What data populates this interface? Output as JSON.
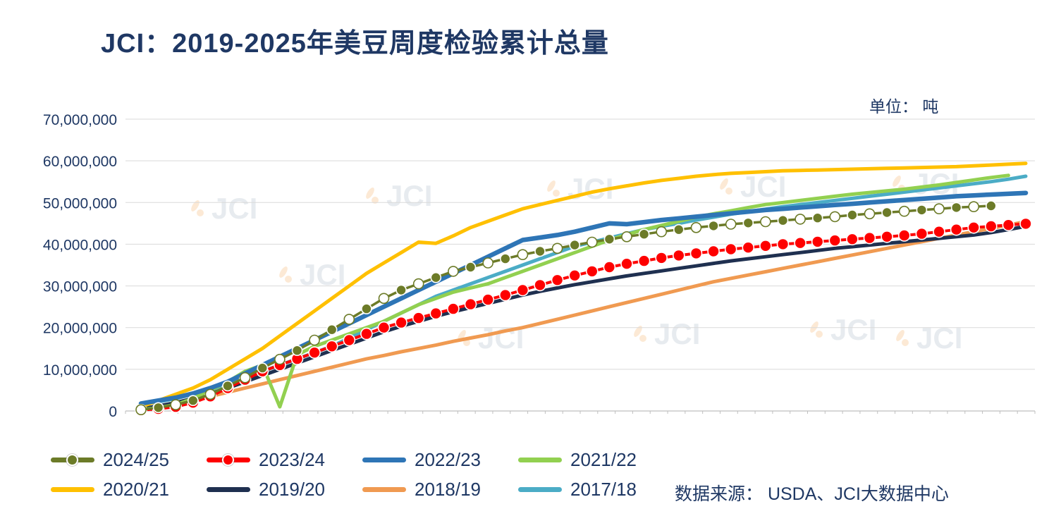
{
  "header": {
    "title": "JCI：2019-2025年美豆周度检验累计总量"
  },
  "chart_data": {
    "type": "line",
    "title": "JCI：2019-2025年美豆周度检验累计总量",
    "unit_label": "单位： 吨",
    "values_unit": "million tons (cumulative weekly US soybean inspections)",
    "x_axis": {
      "label": "",
      "weeks_max": 52,
      "tick_labels_visible": false
    },
    "y_axis": {
      "min": 0,
      "max": 70,
      "tick_values": [
        0,
        10,
        20,
        30,
        40,
        50,
        60,
        70
      ],
      "tick_labels": [
        "0",
        "10,000,000",
        "20,000,000",
        "30,000,000",
        "40,000,000",
        "50,000,000",
        "60,000,000",
        "70,000,000"
      ]
    },
    "grid": "horizontal",
    "legend_position": "bottom",
    "watermark_text": "JCI",
    "series": [
      {
        "name": "2024/25",
        "color": "#6C7B28",
        "marker": "circle",
        "values": [
          0.3,
          0.8,
          1.5,
          2.5,
          4.0,
          6.0,
          8.0,
          10.3,
          12.4,
          14.5,
          17.0,
          19.5,
          22.0,
          24.5,
          27.0,
          29.0,
          30.5,
          32.0,
          33.5,
          34.5,
          35.5,
          36.5,
          37.5,
          38.3,
          39.0,
          39.8,
          40.5,
          41.2,
          41.8,
          42.4,
          43.0,
          43.5,
          44.0,
          44.4,
          44.8,
          45.1,
          45.4,
          45.7,
          46.0,
          46.3,
          46.6,
          47.0,
          47.3,
          47.6,
          47.9,
          48.2,
          48.5,
          48.8,
          49.0,
          49.2
        ]
      },
      {
        "name": "2023/24",
        "color": "#FE0000",
        "marker": "circle",
        "values": [
          0.2,
          0.5,
          1.0,
          2.0,
          3.5,
          5.5,
          7.5,
          9.5,
          11.0,
          12.5,
          14.0,
          15.5,
          17.0,
          18.5,
          20.0,
          21.2,
          22.3,
          23.4,
          24.5,
          25.6,
          26.7,
          27.8,
          29.0,
          30.2,
          31.4,
          32.5,
          33.5,
          34.5,
          35.3,
          36.0,
          36.7,
          37.3,
          37.8,
          38.3,
          38.8,
          39.2,
          39.6,
          40.0,
          40.3,
          40.6,
          40.9,
          41.2,
          41.5,
          41.8,
          42.1,
          42.5,
          43.0,
          43.5,
          44.0,
          44.3,
          44.6,
          44.9
        ]
      },
      {
        "name": "2022/23",
        "color": "#2E75B6",
        "marker": "none",
        "values": [
          1.8,
          2.5,
          3.2,
          4.2,
          5.5,
          7.0,
          9.0,
          11.0,
          13.0,
          15.0,
          17.0,
          19.0,
          21.0,
          23.0,
          25.0,
          27.0,
          29.0,
          31.0,
          33.0,
          35.0,
          37.0,
          39.0,
          41.0,
          41.6,
          42.2,
          43.0,
          44.0,
          45.0,
          44.8,
          45.3,
          45.8,
          46.2,
          46.6,
          47.0,
          47.4,
          47.8,
          48.2,
          48.5,
          48.8,
          49.1,
          49.4,
          49.7,
          50.0,
          50.3,
          50.6,
          50.9,
          51.2,
          51.5,
          51.7,
          51.9,
          52.1,
          52.3
        ]
      },
      {
        "name": "2021/22",
        "color": "#92D050",
        "marker": "none",
        "values": [
          0.3,
          0.8,
          1.5,
          3.0,
          5.0,
          7.0,
          9.5,
          11.0,
          1.0,
          13.5,
          15.5,
          17.0,
          18.5,
          20.0,
          21.5,
          23.5,
          25.5,
          27.0,
          28.5,
          29.5,
          30.5,
          32.0,
          33.5,
          35.0,
          36.5,
          38.0,
          39.5,
          41.0,
          42.3,
          43.5,
          44.5,
          45.5,
          46.5,
          47.3,
          48.0,
          48.8,
          49.5,
          50.0,
          50.5,
          51.0,
          51.5,
          52.0,
          52.4,
          52.8,
          53.2,
          53.7,
          54.2,
          54.8,
          55.4,
          56.0,
          56.5
        ]
      },
      {
        "name": "2020/21",
        "color": "#FFC000",
        "marker": "none",
        "values": [
          1.0,
          2.5,
          4.0,
          5.5,
          7.5,
          10.0,
          12.5,
          15.0,
          18.0,
          21.0,
          24.0,
          27.0,
          30.0,
          33.0,
          35.5,
          38.0,
          40.5,
          40.2,
          42.0,
          44.0,
          45.5,
          47.0,
          48.5,
          49.5,
          50.5,
          51.5,
          52.5,
          53.3,
          54.0,
          54.7,
          55.3,
          55.8,
          56.3,
          56.7,
          57.0,
          57.2,
          57.4,
          57.6,
          57.7,
          57.8,
          57.9,
          58.0,
          58.1,
          58.2,
          58.3,
          58.4,
          58.5,
          58.6,
          58.8,
          59.0,
          59.2,
          59.4
        ]
      },
      {
        "name": "2019/20",
        "color": "#1F3050",
        "marker": "none",
        "values": [
          0.5,
          1.2,
          2.0,
          3.0,
          4.2,
          5.5,
          7.0,
          8.5,
          10.0,
          11.5,
          13.0,
          14.5,
          16.0,
          17.5,
          19.0,
          20.3,
          21.5,
          22.7,
          23.8,
          24.8,
          25.8,
          26.8,
          27.8,
          28.7,
          29.5,
          30.3,
          31.0,
          31.7,
          32.4,
          33.0,
          33.6,
          34.2,
          34.8,
          35.4,
          36.0,
          36.5,
          37.0,
          37.5,
          38.0,
          38.5,
          39.0,
          39.4,
          39.8,
          40.2,
          40.6,
          41.0,
          41.4,
          41.8,
          42.2,
          42.8,
          43.5,
          44.3
        ]
      },
      {
        "name": "2018/19",
        "color": "#F09A51",
        "marker": "none",
        "values": [
          0.3,
          0.8,
          1.5,
          2.5,
          3.5,
          4.5,
          5.5,
          6.5,
          7.5,
          8.5,
          9.5,
          10.5,
          11.5,
          12.5,
          13.3,
          14.2,
          15.0,
          15.8,
          16.7,
          17.5,
          18.3,
          19.2,
          20.0,
          21.0,
          22.0,
          23.0,
          24.0,
          25.0,
          26.0,
          27.0,
          28.0,
          29.0,
          30.0,
          31.0,
          31.8,
          32.6,
          33.4,
          34.2,
          35.0,
          35.8,
          36.6,
          37.4,
          38.2,
          39.0,
          39.8,
          40.6,
          41.4,
          42.2,
          43.0,
          43.8,
          44.6,
          45.4
        ]
      },
      {
        "name": "2017/18",
        "color": "#4BACC6",
        "marker": "none",
        "values": [
          1.5,
          2.2,
          3.0,
          4.0,
          5.0,
          6.5,
          8.0,
          9.5,
          11.0,
          12.5,
          14.0,
          15.5,
          17.5,
          19.5,
          21.5,
          23.5,
          25.5,
          27.5,
          29.0,
          30.5,
          32.0,
          33.5,
          35.0,
          36.5,
          38.0,
          39.5,
          40.5,
          41.5,
          42.5,
          43.5,
          44.3,
          45.0,
          45.8,
          46.5,
          47.2,
          47.8,
          48.4,
          49.0,
          49.5,
          50.0,
          50.5,
          51.0,
          51.5,
          52.0,
          52.5,
          53.0,
          53.5,
          54.0,
          54.5,
          55.0,
          55.6,
          56.3
        ]
      }
    ]
  },
  "source": {
    "text": "数据来源： USDA、JCI大数据中心"
  }
}
